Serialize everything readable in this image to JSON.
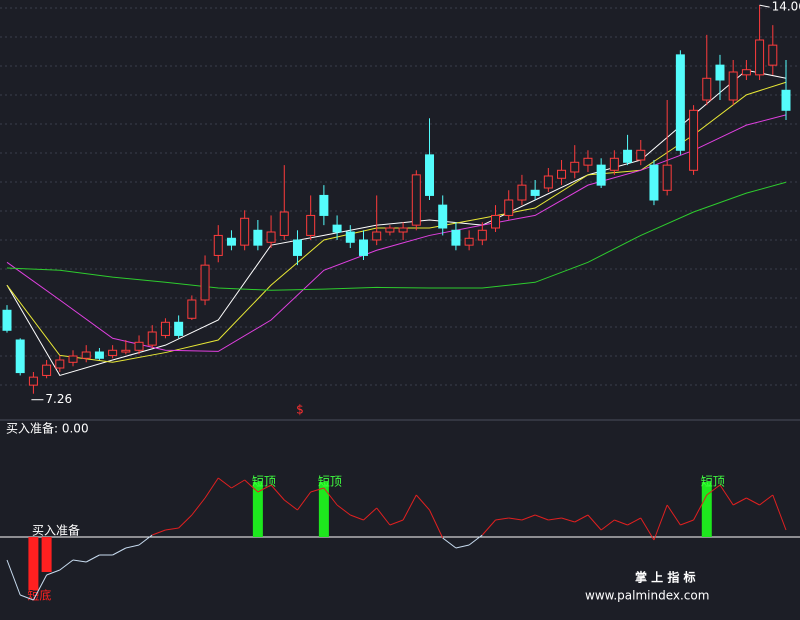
{
  "chart_data": [
    {
      "type": "candlestick",
      "open": [
        8.72,
        8.2,
        7.41,
        7.58,
        7.71,
        7.81,
        7.88,
        7.99,
        7.93,
        7.99,
        8.02,
        8.11,
        8.28,
        8.51,
        8.58,
        8.9,
        9.68,
        9.98,
        9.86,
        10.12,
        9.91,
        10.03,
        9.95,
        10.03,
        10.73,
        10.21,
        10.09,
        9.95,
        9.95,
        10.09,
        10.09,
        10.21,
        11.44,
        10.56,
        10.12,
        9.86,
        9.95,
        10.16,
        10.38,
        10.65,
        10.82,
        10.86,
        11.03,
        11.14,
        11.26,
        11.26,
        11.17,
        11.52,
        11.35,
        11.26,
        10.82,
        13.19,
        11.17,
        12.4,
        13.01,
        12.4,
        12.84,
        12.84,
        13.01,
        12.57
      ],
      "high": [
        8.81,
        8.23,
        7.64,
        7.85,
        7.93,
        8.02,
        8.11,
        8.06,
        8.11,
        8.2,
        8.28,
        8.46,
        8.58,
        8.63,
        8.98,
        9.68,
        10.21,
        10.12,
        10.47,
        10.3,
        10.38,
        11.26,
        10.12,
        10.73,
        10.91,
        10.38,
        10.21,
        10.12,
        10.73,
        10.21,
        10.26,
        11.17,
        12.08,
        10.73,
        10.26,
        10.12,
        10.26,
        10.56,
        10.82,
        11.09,
        11.0,
        11.21,
        11.35,
        11.61,
        11.52,
        11.38,
        11.52,
        11.79,
        11.7,
        11.35,
        12.4,
        13.27,
        12.31,
        13.54,
        13.19,
        13.1,
        13.1,
        14.06,
        13.71,
        13.1
      ],
      "low": [
        8.33,
        7.58,
        7.26,
        7.53,
        7.64,
        7.74,
        7.81,
        7.85,
        7.88,
        7.95,
        7.95,
        8.06,
        8.23,
        8.23,
        8.55,
        8.81,
        9.56,
        9.77,
        9.77,
        9.77,
        9.81,
        9.95,
        9.51,
        9.95,
        10.21,
        9.95,
        9.81,
        9.6,
        9.86,
        10.03,
        9.95,
        10.12,
        10.65,
        10.03,
        9.77,
        9.77,
        9.86,
        10.09,
        10.3,
        10.56,
        10.65,
        10.79,
        10.91,
        11.03,
        11.14,
        10.86,
        11.09,
        11.26,
        11.26,
        10.56,
        10.73,
        11.44,
        11.09,
        12.31,
        12.4,
        12.31,
        12.75,
        12.75,
        12.84,
        12.05
      ],
      "close": [
        8.37,
        7.63,
        7.55,
        7.76,
        7.85,
        7.92,
        7.99,
        7.88,
        8.02,
        8.02,
        8.16,
        8.34,
        8.51,
        8.28,
        8.9,
        9.51,
        10.03,
        9.86,
        10.33,
        9.86,
        10.09,
        10.44,
        9.68,
        10.38,
        10.38,
        10.09,
        9.91,
        9.68,
        10.09,
        10.16,
        10.16,
        11.09,
        10.73,
        10.16,
        9.86,
        9.98,
        10.12,
        10.38,
        10.65,
        10.91,
        10.73,
        11.07,
        11.17,
        11.31,
        11.38,
        10.91,
        11.38,
        11.31,
        11.52,
        10.65,
        11.26,
        11.52,
        12.22,
        12.78,
        12.75,
        12.89,
        12.93,
        13.45,
        13.36,
        12.22
      ],
      "up_color": "#ff3c3c",
      "down_color": "#54fcfc",
      "ylim": [
        6.8,
        14.15
      ],
      "overlays": [
        {
          "color": "#ffffff",
          "x": [
            0,
            4,
            8,
            12,
            16,
            20,
            24,
            28,
            32,
            36,
            40,
            44,
            48,
            52,
            56,
            59
          ],
          "values": [
            9.16,
            7.58,
            7.85,
            8.11,
            8.55,
            9.86,
            10.03,
            10.21,
            10.3,
            10.21,
            10.65,
            11.09,
            11.35,
            12.14,
            12.92,
            12.78
          ]
        },
        {
          "color": "#e8e836",
          "x": [
            0,
            4,
            8,
            12,
            16,
            20,
            24,
            28,
            32,
            36,
            40,
            44,
            48,
            52,
            56,
            59
          ],
          "values": [
            9.16,
            7.93,
            7.81,
            7.98,
            8.2,
            9.16,
            9.95,
            10.16,
            10.16,
            10.33,
            10.51,
            11.09,
            11.17,
            11.79,
            12.49,
            12.71
          ]
        },
        {
          "color": "#e040e0",
          "x": [
            0,
            4,
            8,
            12,
            16,
            20,
            24,
            28,
            32,
            36,
            40,
            44,
            48,
            52,
            56,
            59
          ],
          "values": [
            9.56,
            8.9,
            8.23,
            8.02,
            8.0,
            8.55,
            9.42,
            9.77,
            10.03,
            10.21,
            10.38,
            10.91,
            11.17,
            11.52,
            11.96,
            12.14
          ]
        },
        {
          "color": "#2ecc2e",
          "x": [
            0,
            4,
            8,
            12,
            16,
            20,
            24,
            28,
            32,
            36,
            40,
            44,
            48,
            52,
            56,
            59
          ],
          "values": [
            9.46,
            9.42,
            9.3,
            9.21,
            9.11,
            9.07,
            9.09,
            9.12,
            9.11,
            9.11,
            9.21,
            9.56,
            10.03,
            10.44,
            10.77,
            10.96
          ]
        }
      ],
      "annotations": [
        "$"
      ]
    },
    {
      "type": "line",
      "title": "买入准备: 0.00",
      "values": [
        -4.6,
        -11.6,
        -12.6,
        -7.6,
        -6.6,
        -4.6,
        -5,
        -3.6,
        -3.6,
        -2.2,
        -1.6,
        0.4,
        1.4,
        1.8,
        4.4,
        7.8,
        11.8,
        9.8,
        11.4,
        9,
        10.4,
        7.4,
        5.4,
        9,
        9.8,
        6.4,
        4.4,
        3.4,
        5.8,
        2.4,
        3.4,
        8.4,
        5.4,
        -0.2,
        -2.2,
        -1.6,
        0.4,
        3.4,
        3.8,
        3.4,
        4.4,
        3.4,
        3.8,
        3,
        4.4,
        1.4,
        3.4,
        2.4,
        3.8,
        -0.6,
        6.4,
        2.4,
        3.4,
        8.4,
        10.4,
        6.4,
        7.8,
        6.4,
        8.4,
        1.4
      ],
      "above_color": "#e02020",
      "below_color": "#c8dcf0",
      "ylim": [
        -17,
        23
      ],
      "level": 0,
      "level_label": "买入准备",
      "bars": [
        {
          "x": 2,
          "value": -10.6,
          "color": "#ff2020",
          "label": "短底"
        },
        {
          "x": 3,
          "value": -7,
          "color": "#ff2020"
        },
        {
          "x": 19,
          "value": 11,
          "color": "#1ee81e",
          "label": "短顶"
        },
        {
          "x": 24,
          "value": 11,
          "color": "#1ee81e",
          "label": "短顶"
        },
        {
          "x": 53,
          "value": 11,
          "color": "#1ee81e",
          "label": "短顶"
        }
      ]
    }
  ],
  "watermark": {
    "title": "掌 上 指 标",
    "url": "www.palmindex.com"
  }
}
